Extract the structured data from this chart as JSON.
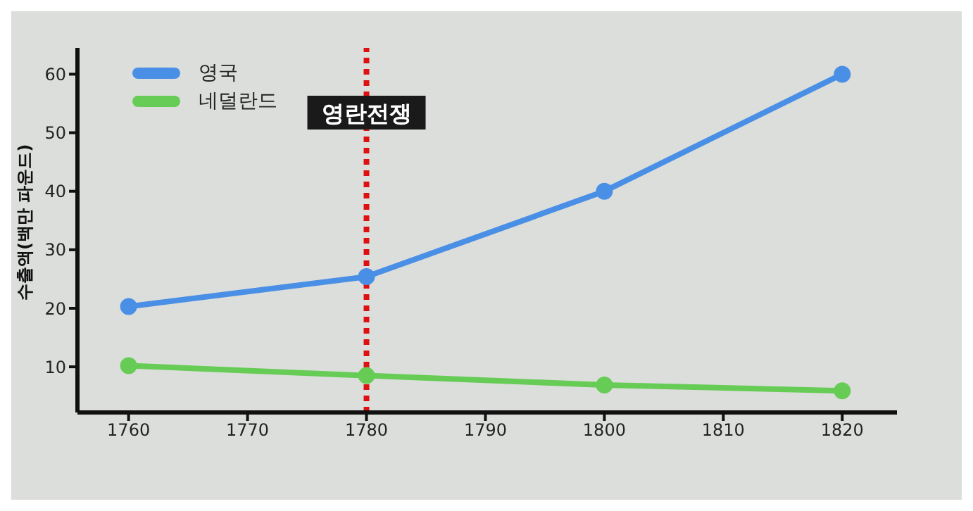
{
  "chart_data": {
    "type": "line",
    "ylabel": "수출액(백만 파운드)",
    "x": [
      1760,
      1780,
      1800,
      1820
    ],
    "series": [
      {
        "name": "영국",
        "color": "#4a8fe6",
        "values": [
          20.3,
          25.4,
          40.0,
          60
        ]
      },
      {
        "name": "네덜란드",
        "color": "#66cc55",
        "values": [
          10.2,
          8.5,
          6.9,
          5.9
        ]
      }
    ],
    "xlim": [
      1755.7,
      1824.6
    ],
    "xticks": [
      1760,
      1770,
      1780,
      1790,
      1800,
      1810,
      1820
    ],
    "ylim": [
      2.2,
      64.5
    ],
    "yticks": [
      10,
      20,
      30,
      40,
      50,
      60
    ],
    "ref_lines": [
      {
        "axis": "x",
        "value": 1780,
        "label": "영란전쟁",
        "color": "#dd1111",
        "line_style": "dotted"
      }
    ],
    "legend": "top left",
    "grid": false,
    "marker": "circle",
    "line_style": "solid"
  }
}
